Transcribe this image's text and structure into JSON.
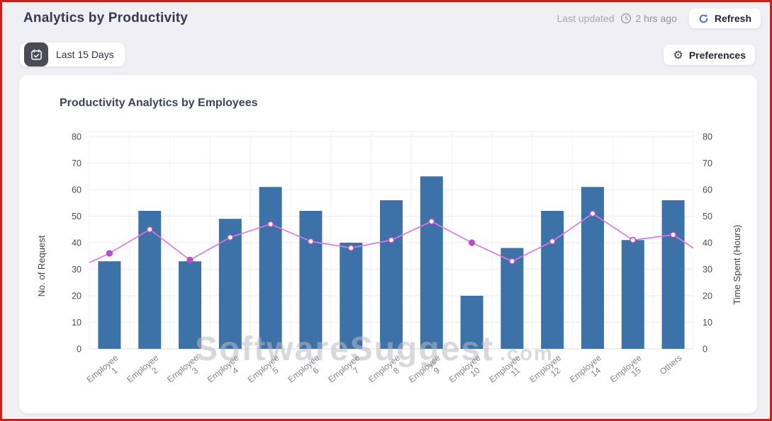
{
  "header": {
    "title": "Analytics by Productivity",
    "last_updated_label": "Last updated",
    "last_updated_value": "2 hrs ago",
    "refresh_label": "Refresh"
  },
  "toolbar": {
    "date_filter_label": "Last 15 Days",
    "preferences_label": "Preferences",
    "gear_glyph": "⚙"
  },
  "watermark": {
    "main": "SoftwareSuggest",
    "suffix": ".com"
  },
  "chart_data": {
    "type": "bar",
    "subtype": "combo bar + line, dual y-axis",
    "title": "Productivity Analytics by Employees",
    "categories": [
      "Employee 1",
      "Employee 2",
      "Employee 3",
      "Employee 4",
      "Employee 5",
      "Employee 6",
      "Employee 7",
      "Employee 8",
      "Employee 9",
      "Employee 10",
      "Employee 11",
      "Employee 12",
      "Employee 14",
      "Employee 15",
      "Others"
    ],
    "series": [
      {
        "name": "No. of Request",
        "type": "bar",
        "color": "#3d72a8",
        "values": [
          33,
          52,
          33,
          49,
          61,
          52,
          40,
          56,
          65,
          20,
          38,
          52,
          61,
          41,
          56
        ]
      },
      {
        "name": "Time Spent (Hours)",
        "type": "line",
        "color": "#e078e4",
        "point_color": "#b44fc4",
        "values": [
          36,
          45,
          33.5,
          42,
          47,
          40.5,
          38,
          41,
          48,
          40,
          33,
          40.5,
          51,
          41,
          43
        ],
        "edge_start_value": 32.5,
        "edge_end_value": 38,
        "filled_point_indices": [
          0,
          2,
          9
        ]
      }
    ],
    "y_left": {
      "label": "No. of Request",
      "min": 0,
      "max": 80,
      "step": 10
    },
    "y_right": {
      "label": "Time Spent (Hours)",
      "min": 0,
      "max": 80,
      "step": 10
    },
    "grid": true,
    "legend": "none"
  }
}
